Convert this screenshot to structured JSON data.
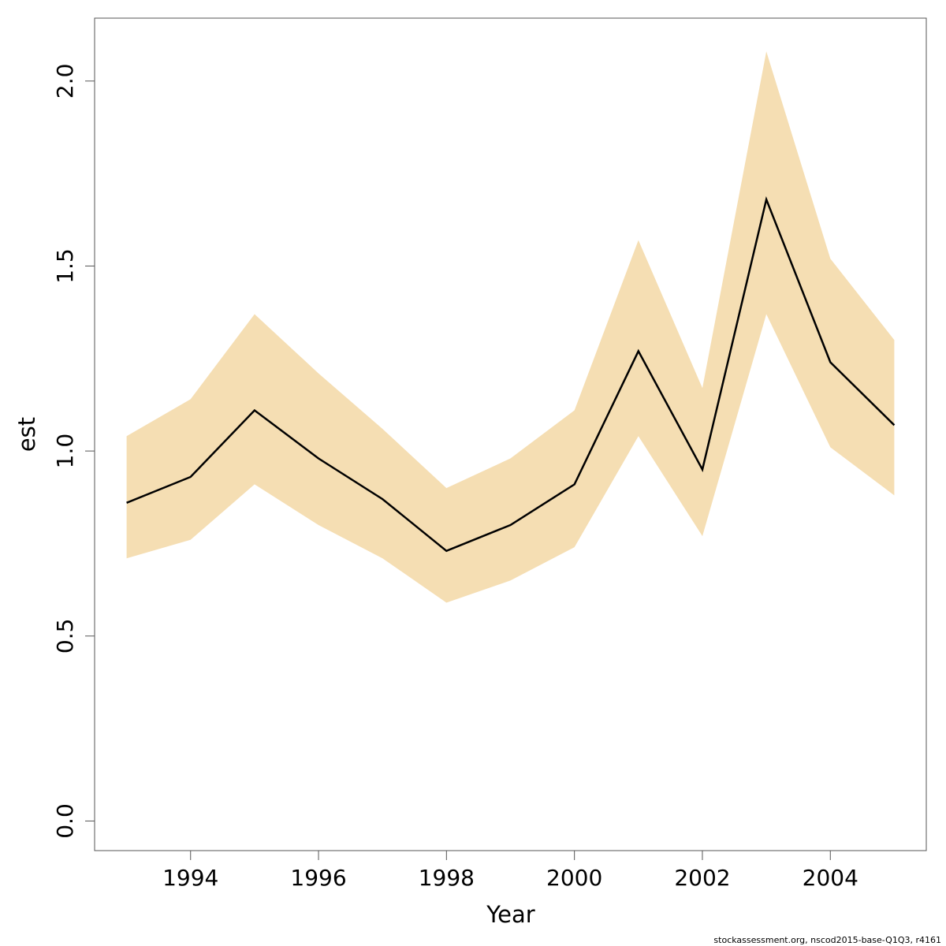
{
  "chart_data": {
    "type": "area",
    "title": "",
    "xlabel": "Year",
    "ylabel": "est",
    "xlim": [
      1992.5,
      2005.5
    ],
    "ylim": [
      -0.08,
      2.17
    ],
    "x_ticks": [
      1994,
      1996,
      1998,
      2000,
      2002,
      2004
    ],
    "y_ticks": [
      0.0,
      0.5,
      1.0,
      1.5,
      2.0
    ],
    "y_tick_labels": [
      "0.0",
      "0.5",
      "1.0",
      "1.5",
      "2.0"
    ],
    "grid": false,
    "band_color": "#f5deb3",
    "line_color": "#000000",
    "x": [
      1993,
      1994,
      1995,
      1996,
      1997,
      1998,
      1999,
      2000,
      2001,
      2002,
      2003,
      2004,
      2005
    ],
    "series": [
      {
        "estimate": [
          0.86,
          0.93,
          1.11,
          0.98,
          0.87,
          0.73,
          0.8,
          0.91,
          1.27,
          0.95,
          1.68,
          1.24,
          1.07
        ],
        "upper": [
          1.04,
          1.14,
          1.37,
          1.21,
          1.06,
          0.9,
          0.98,
          1.11,
          1.57,
          1.17,
          2.08,
          1.52,
          1.3
        ],
        "lower": [
          0.71,
          0.76,
          0.91,
          0.8,
          0.71,
          0.59,
          0.65,
          0.74,
          1.04,
          0.77,
          1.37,
          1.01,
          0.88
        ]
      }
    ]
  },
  "credit": "stockassessment.org, nscod2015-base-Q1Q3, r4161"
}
